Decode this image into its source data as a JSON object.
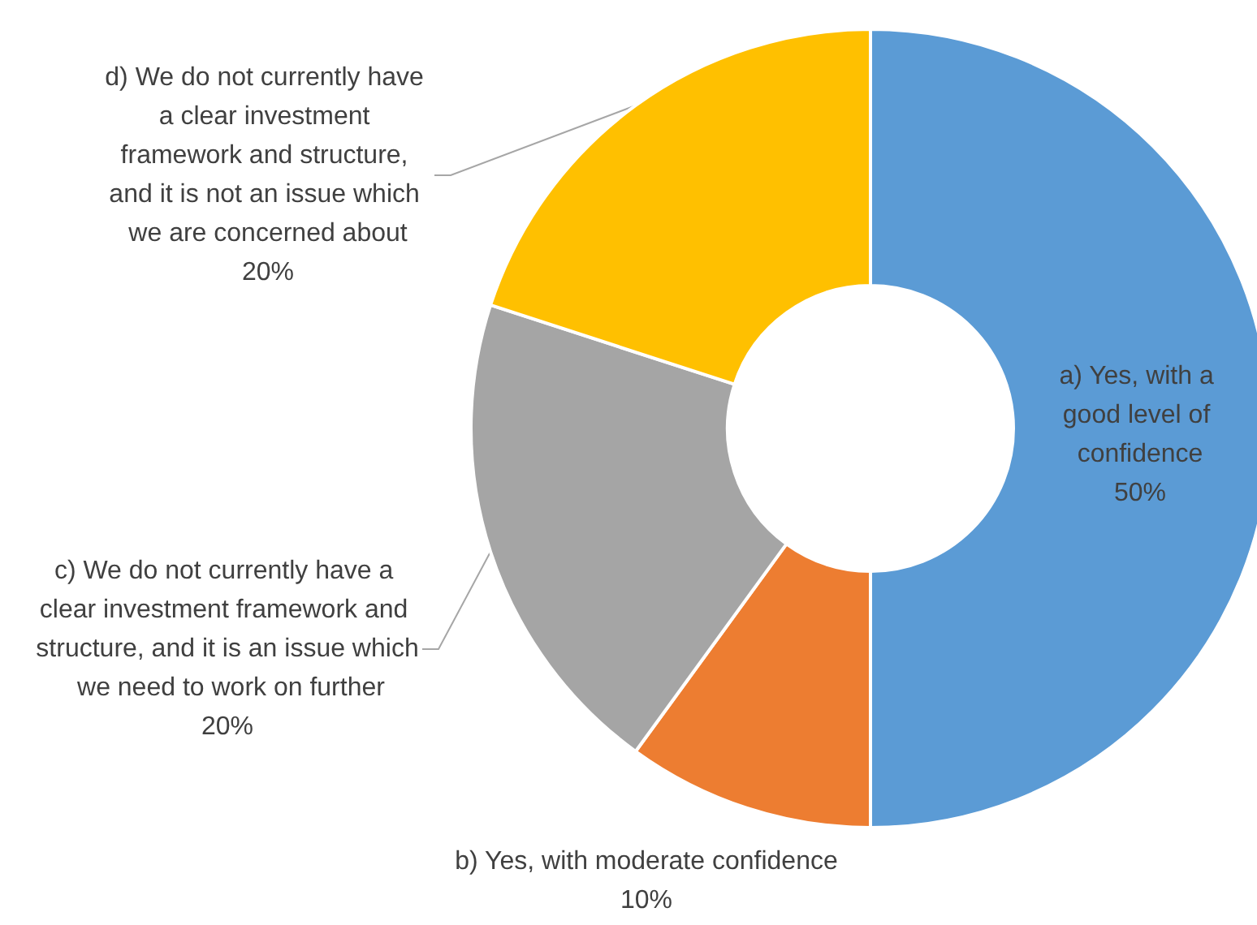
{
  "chart_data": {
    "type": "donut",
    "categories": [
      "a) Yes, with a good level of confidence",
      "b) Yes, with moderate confidence",
      "c) We do not currently have a clear investment framework and structure, and it is an issue which we need to work on further",
      "d) We do not currently have a clear investment framework and structure, and it is not an issue which we are concerned about"
    ],
    "values": [
      50,
      10,
      20,
      20
    ],
    "colors": [
      "#5b9bd5",
      "#ed7d31",
      "#a5a5a5",
      "#ffc000"
    ],
    "value_labels": [
      "50%",
      "10%",
      "20%",
      "20%"
    ],
    "legend": false
  }
}
